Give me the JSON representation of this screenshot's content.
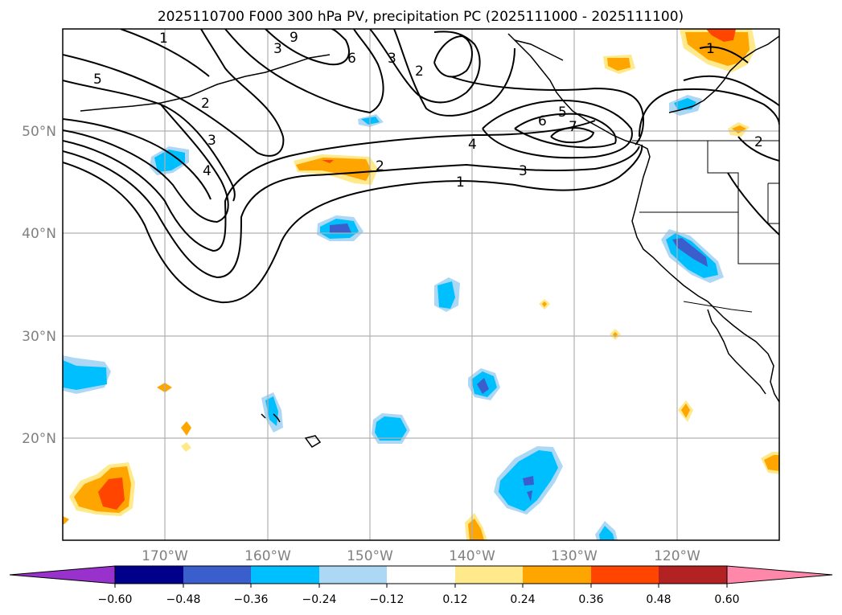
{
  "title": "2025110700 F000 300 hPa PV, precipitation PC (2025111000 - 2025111100)",
  "lon_labels": [
    "170°W",
    "160°W",
    "150°W",
    "140°W",
    "130°W",
    "120°W"
  ],
  "lat_labels": [
    "50°N",
    "40°N",
    "30°N",
    "20°N"
  ],
  "colorbar": {
    "ticks": [
      "−0.60",
      "−0.48",
      "−0.36",
      "−0.24",
      "−0.12",
      "0.12",
      "0.24",
      "0.36",
      "0.48",
      "0.60"
    ],
    "colors": {
      "under": "#9932cc",
      "c1": "#00008b",
      "c2": "#3a5fcd",
      "c3": "#00bfff",
      "c4": "#add8f5",
      "c5": "#ffffff",
      "c6": "#ffe98a",
      "c7": "#ffa500",
      "c8": "#ff4500",
      "c9": "#b22222",
      "over": "#ff88aa"
    }
  },
  "contour_labels": [
    "1",
    "2",
    "3",
    "4",
    "5",
    "6",
    "7",
    "1",
    "2",
    "3",
    "4",
    "5",
    "6",
    "9",
    "3",
    "2",
    "1",
    "2",
    "3"
  ]
}
